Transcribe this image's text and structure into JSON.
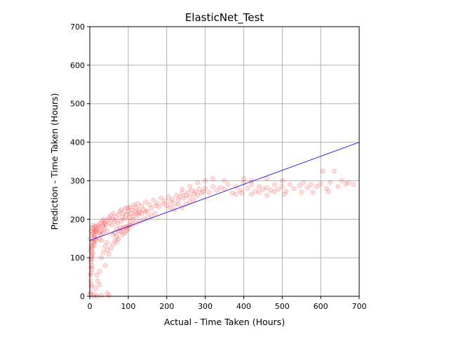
{
  "chart_data": {
    "type": "scatter",
    "title": "ElasticNet_Test",
    "xlabel": "Actual - Time Taken (Hours)",
    "ylabel": "Prediction - Time Taken (Hours)",
    "xlim": [
      0,
      700
    ],
    "ylim": [
      0,
      700
    ],
    "xticks": [
      "0",
      "100",
      "200",
      "300",
      "400",
      "500",
      "600",
      "700"
    ],
    "yticks": [
      "0",
      "100",
      "200",
      "300",
      "400",
      "500",
      "600",
      "700"
    ],
    "grid": true,
    "point_color": "#ff0000",
    "point_alpha": 0.12,
    "reference_line": {
      "color": "#0000ff",
      "from": [
        0,
        145
      ],
      "to": [
        700,
        400
      ]
    },
    "points": [
      [
        1,
        148
      ],
      [
        2,
        120
      ],
      [
        3,
        170
      ],
      [
        4,
        95
      ],
      [
        5,
        160
      ],
      [
        6,
        140
      ],
      [
        7,
        178
      ],
      [
        8,
        110
      ],
      [
        9,
        185
      ],
      [
        10,
        150
      ],
      [
        3,
        130
      ],
      [
        5,
        105
      ],
      [
        7,
        125
      ],
      [
        9,
        165
      ],
      [
        11,
        175
      ],
      [
        12,
        135
      ],
      [
        13,
        155
      ],
      [
        14,
        182
      ],
      [
        15,
        145
      ],
      [
        16,
        168
      ],
      [
        2,
        90
      ],
      [
        4,
        100
      ],
      [
        6,
        115
      ],
      [
        8,
        130
      ],
      [
        10,
        140
      ],
      [
        12,
        160
      ],
      [
        14,
        170
      ],
      [
        16,
        150
      ],
      [
        18,
        172
      ],
      [
        20,
        180
      ],
      [
        1,
        55
      ],
      [
        2,
        40
      ],
      [
        3,
        25
      ],
      [
        2,
        10
      ],
      [
        1,
        5
      ],
      [
        4,
        30
      ],
      [
        3,
        60
      ],
      [
        5,
        70
      ],
      [
        6,
        80
      ],
      [
        2,
        75
      ],
      [
        22,
        185
      ],
      [
        24,
        165
      ],
      [
        26,
        178
      ],
      [
        28,
        190
      ],
      [
        30,
        170
      ],
      [
        32,
        195
      ],
      [
        34,
        182
      ],
      [
        36,
        200
      ],
      [
        38,
        188
      ],
      [
        40,
        192
      ],
      [
        25,
        150
      ],
      [
        28,
        160
      ],
      [
        31,
        145
      ],
      [
        35,
        165
      ],
      [
        38,
        175
      ],
      [
        42,
        185
      ],
      [
        45,
        170
      ],
      [
        48,
        198
      ],
      [
        50,
        205
      ],
      [
        52,
        190
      ],
      [
        55,
        210
      ],
      [
        58,
        185
      ],
      [
        60,
        200
      ],
      [
        62,
        215
      ],
      [
        65,
        195
      ],
      [
        68,
        205
      ],
      [
        70,
        175
      ],
      [
        72,
        190
      ],
      [
        75,
        212
      ],
      [
        78,
        220
      ],
      [
        80,
        195
      ],
      [
        82,
        225
      ],
      [
        85,
        205
      ],
      [
        88,
        215
      ],
      [
        90,
        200
      ],
      [
        92,
        228
      ],
      [
        95,
        212
      ],
      [
        98,
        230
      ],
      [
        100,
        220
      ],
      [
        102,
        205
      ],
      [
        105,
        232
      ],
      [
        108,
        215
      ],
      [
        110,
        225
      ],
      [
        112,
        208
      ],
      [
        115,
        238
      ],
      [
        118,
        220
      ],
      [
        120,
        230
      ],
      [
        122,
        215
      ],
      [
        125,
        240
      ],
      [
        128,
        225
      ],
      [
        60,
        160
      ],
      [
        65,
        165
      ],
      [
        70,
        155
      ],
      [
        75,
        170
      ],
      [
        80,
        168
      ],
      [
        85,
        175
      ],
      [
        90,
        165
      ],
      [
        95,
        180
      ],
      [
        100,
        175
      ],
      [
        105,
        185
      ],
      [
        130,
        218
      ],
      [
        135,
        235
      ],
      [
        140,
        225
      ],
      [
        145,
        245
      ],
      [
        150,
        220
      ],
      [
        155,
        238
      ],
      [
        160,
        228
      ],
      [
        165,
        250
      ],
      [
        170,
        235
      ],
      [
        175,
        242
      ],
      [
        180,
        232
      ],
      [
        185,
        255
      ],
      [
        190,
        240
      ],
      [
        195,
        248
      ],
      [
        200,
        235
      ],
      [
        205,
        258
      ],
      [
        210,
        245
      ],
      [
        215,
        252
      ],
      [
        220,
        240
      ],
      [
        225,
        262
      ],
      [
        230,
        250
      ],
      [
        235,
        258
      ],
      [
        240,
        268
      ],
      [
        245,
        255
      ],
      [
        250,
        262
      ],
      [
        255,
        270
      ],
      [
        260,
        258
      ],
      [
        265,
        275
      ],
      [
        270,
        265
      ],
      [
        275,
        272
      ],
      [
        280,
        262
      ],
      [
        285,
        278
      ],
      [
        290,
        268
      ],
      [
        295,
        272
      ],
      [
        300,
        280
      ],
      [
        310,
        270
      ],
      [
        320,
        285
      ],
      [
        330,
        275
      ],
      [
        340,
        282
      ],
      [
        350,
        278
      ],
      [
        360,
        290
      ],
      [
        370,
        268
      ],
      [
        380,
        285
      ],
      [
        390,
        275
      ],
      [
        400,
        295
      ],
      [
        410,
        280
      ],
      [
        420,
        290
      ],
      [
        430,
        272
      ],
      [
        440,
        285
      ],
      [
        450,
        278
      ],
      [
        460,
        282
      ],
      [
        470,
        275
      ],
      [
        480,
        290
      ],
      [
        490,
        278
      ],
      [
        500,
        285
      ],
      [
        510,
        272
      ],
      [
        520,
        290
      ],
      [
        530,
        280
      ],
      [
        545,
        288
      ],
      [
        555,
        295
      ],
      [
        565,
        282
      ],
      [
        575,
        290
      ],
      [
        590,
        285
      ],
      [
        600,
        292
      ],
      [
        605,
        325
      ],
      [
        615,
        280
      ],
      [
        625,
        295
      ],
      [
        635,
        325
      ],
      [
        645,
        285
      ],
      [
        655,
        300
      ],
      [
        665,
        292
      ],
      [
        672,
        295
      ],
      [
        685,
        290
      ],
      [
        250,
        240
      ],
      [
        260,
        245
      ],
      [
        270,
        250
      ],
      [
        240,
        230
      ],
      [
        230,
        238
      ],
      [
        220,
        225
      ],
      [
        210,
        230
      ],
      [
        150,
        205
      ],
      [
        160,
        210
      ],
      [
        170,
        215
      ],
      [
        140,
        200
      ],
      [
        130,
        195
      ],
      [
        120,
        190
      ],
      [
        110,
        185
      ],
      [
        100,
        182
      ],
      [
        90,
        180
      ],
      [
        80,
        178
      ],
      [
        30,
        100
      ],
      [
        35,
        115
      ],
      [
        40,
        80
      ],
      [
        45,
        120
      ],
      [
        25,
        65
      ],
      [
        20,
        40
      ],
      [
        15,
        20
      ],
      [
        12,
        5
      ],
      [
        30,
        2
      ],
      [
        45,
        8
      ],
      [
        10,
        0
      ],
      [
        20,
        0
      ],
      [
        50,
        2
      ],
      [
        25,
        30
      ],
      [
        18,
        55
      ],
      [
        60,
        135
      ],
      [
        55,
        125
      ],
      [
        50,
        110
      ],
      [
        45,
        140
      ],
      [
        40,
        130
      ],
      [
        70,
        140
      ],
      [
        75,
        150
      ],
      [
        65,
        145
      ],
      [
        85,
        160
      ],
      [
        95,
        170
      ],
      [
        105,
        195
      ],
      [
        115,
        200
      ],
      [
        125,
        210
      ],
      [
        135,
        215
      ],
      [
        145,
        220
      ],
      [
        400,
        305
      ],
      [
        420,
        300
      ],
      [
        460,
        305
      ],
      [
        500,
        300
      ],
      [
        350,
        300
      ],
      [
        320,
        305
      ],
      [
        300,
        300
      ],
      [
        280,
        295
      ],
      [
        260,
        285
      ],
      [
        240,
        278
      ],
      [
        380,
        265
      ],
      [
        395,
        268
      ],
      [
        420,
        265
      ],
      [
        440,
        270
      ],
      [
        460,
        262
      ],
      [
        480,
        272
      ],
      [
        505,
        265
      ],
      [
        550,
        270
      ],
      [
        580,
        270
      ],
      [
        620,
        272
      ]
    ]
  }
}
